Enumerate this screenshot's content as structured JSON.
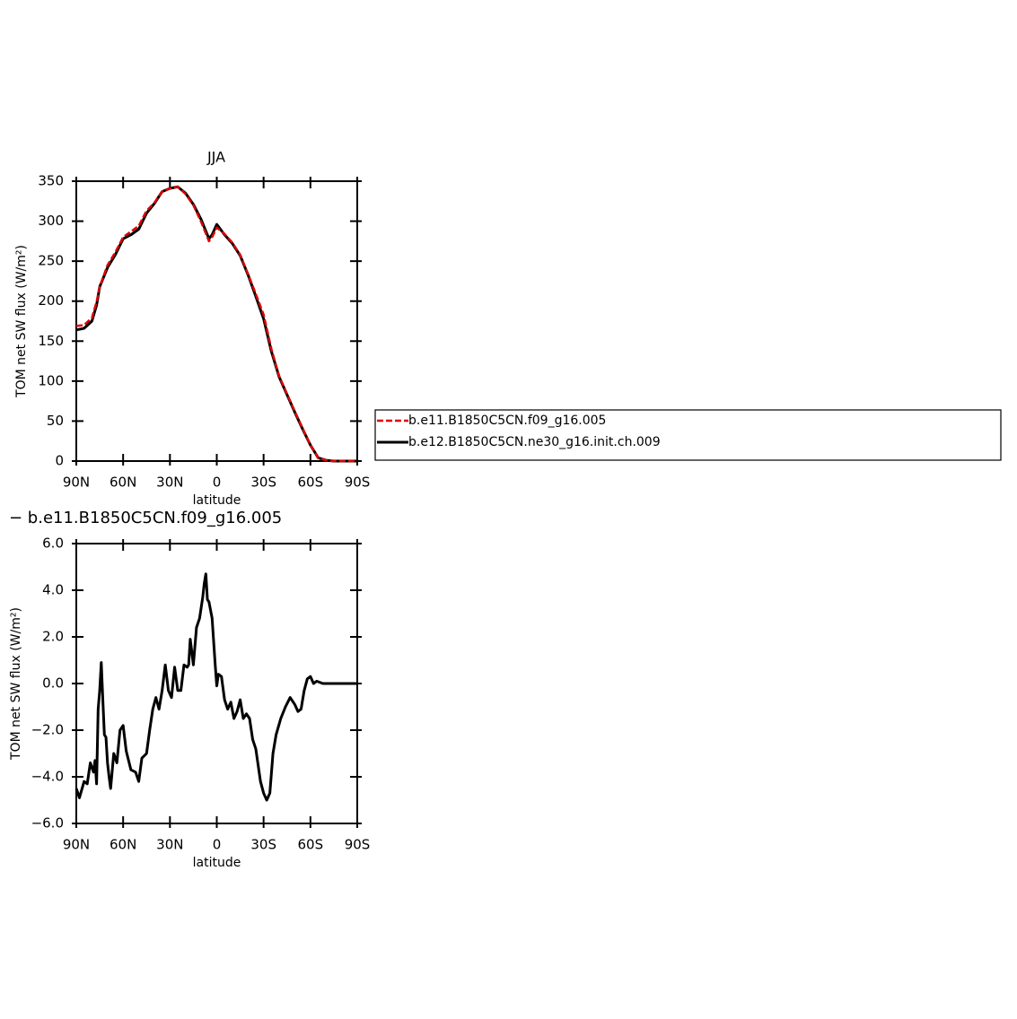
{
  "chart_data": [
    {
      "type": "line",
      "title": "JJA",
      "xlabel": "latitude",
      "ylabel": "TOM net SW flux (W/m²)",
      "x": [
        90,
        85,
        80,
        77,
        75,
        70,
        65,
        60,
        55,
        50,
        45,
        40,
        35,
        30,
        25,
        20,
        15,
        10,
        5,
        3,
        0,
        -5,
        -10,
        -15,
        -20,
        -25,
        -30,
        -35,
        -40,
        -45,
        -50,
        -55,
        -60,
        -65,
        -70,
        -75,
        -80,
        -85,
        -90
      ],
      "series": [
        {
          "name": "b.e11.B1850C5CN.f09_g16.005",
          "color": "#e00000",
          "style": "dashed",
          "values": [
            169,
            170,
            179,
            199,
            218,
            245,
            261,
            280,
            287,
            294,
            313,
            323,
            337,
            341,
            343,
            334,
            320,
            299,
            275,
            280,
            292,
            284,
            273,
            258,
            234,
            209,
            183,
            140,
            106,
            84,
            62,
            41,
            20,
            4,
            1,
            0,
            0,
            0,
            0
          ]
        },
        {
          "name": "b.e12.B1850C5CN.ne30_g16.init.ch.009",
          "color": "#000000",
          "style": "solid",
          "values": [
            164,
            166,
            175,
            195,
            218,
            242,
            258,
            278,
            283,
            290,
            310,
            322,
            337,
            341,
            343,
            335,
            321,
            302,
            278,
            283,
            296,
            283,
            272,
            257,
            233,
            206,
            178,
            137,
            105,
            83,
            61,
            40,
            20,
            4,
            1,
            0,
            0,
            0,
            0
          ]
        }
      ],
      "xlim": [
        90,
        -90
      ],
      "xticks": [
        {
          "value": 90,
          "label": "90N"
        },
        {
          "value": 60,
          "label": "60N"
        },
        {
          "value": 30,
          "label": "30N"
        },
        0,
        {
          "value": -30,
          "label": "30S"
        },
        {
          "value": -60,
          "label": "60S"
        },
        {
          "value": -90,
          "label": "90S"
        }
      ],
      "ylim": [
        0,
        350
      ],
      "yticks": [
        0,
        50,
        100,
        150,
        200,
        250,
        300,
        350
      ],
      "legend": "right"
    },
    {
      "type": "line",
      "title": "− b.e11.B1850C5CN.f09_g16.005",
      "xlabel": "latitude",
      "ylabel": "TOM net SW flux (W/m²)",
      "x": [
        90,
        88,
        85,
        83,
        81,
        79,
        78,
        77,
        76,
        75,
        74,
        73,
        72,
        71,
        70,
        69,
        68,
        66,
        64,
        62,
        60,
        58,
        55,
        52,
        50,
        48,
        45,
        43,
        41,
        39,
        37,
        35,
        33,
        31,
        29,
        27,
        25,
        23,
        21,
        19,
        18,
        17,
        15,
        13,
        11,
        9,
        8,
        7,
        6,
        5,
        3,
        1,
        0,
        -1,
        -3,
        -5,
        -7,
        -9,
        -11,
        -13,
        -15,
        -17,
        -19,
        -21,
        -23,
        -25,
        -28,
        -30,
        -32,
        -34,
        -36,
        -38,
        -41,
        -44,
        -47,
        -50,
        -52,
        -54,
        -56,
        -58,
        -60,
        -62,
        -64,
        -68,
        -72,
        -80,
        -90
      ],
      "color": "#000000",
      "values": [
        -4.5,
        -4.9,
        -4.2,
        -4.3,
        -3.4,
        -3.8,
        -3.3,
        -4.3,
        -1.1,
        -0.3,
        0.9,
        -0.7,
        -2.2,
        -2.3,
        -3.4,
        -4.0,
        -4.5,
        -3.0,
        -3.4,
        -2.0,
        -1.8,
        -2.9,
        -3.7,
        -3.8,
        -4.2,
        -3.2,
        -3.0,
        -2.0,
        -1.1,
        -0.6,
        -1.1,
        -0.3,
        0.8,
        -0.3,
        -0.6,
        0.7,
        -0.3,
        -0.3,
        0.8,
        0.7,
        0.8,
        1.9,
        0.8,
        2.4,
        2.8,
        3.7,
        4.3,
        4.7,
        3.6,
        3.5,
        2.8,
        0.8,
        -0.1,
        0.4,
        0.3,
        -0.7,
        -1.1,
        -0.8,
        -1.5,
        -1.2,
        -0.7,
        -1.5,
        -1.3,
        -1.5,
        -2.4,
        -2.8,
        -4.2,
        -4.7,
        -5.0,
        -4.7,
        -3.0,
        -2.2,
        -1.5,
        -1.0,
        -0.6,
        -0.9,
        -1.2,
        -1.1,
        -0.3,
        0.2,
        0.3,
        0.0,
        0.1,
        0.0,
        0.0,
        0,
        0
      ],
      "xlim": [
        90,
        -90
      ],
      "xticks": [
        {
          "value": 90,
          "label": "90N"
        },
        {
          "value": 60,
          "label": "60N"
        },
        {
          "value": 30,
          "label": "30N"
        },
        0,
        {
          "value": -30,
          "label": "30S"
        },
        {
          "value": -60,
          "label": "60S"
        },
        {
          "value": -90,
          "label": "90S"
        }
      ],
      "ylim": [
        -6,
        6
      ],
      "yticks": [
        {
          "value": -6,
          "label": "−6.0"
        },
        {
          "value": -4,
          "label": "−4.0"
        },
        {
          "value": -2,
          "label": "−2.0"
        },
        {
          "value": 0,
          "label": "0.0"
        },
        {
          "value": 2,
          "label": "2.0"
        },
        {
          "value": 4,
          "label": "4.0"
        },
        {
          "value": 6,
          "label": "6.0"
        }
      ]
    }
  ]
}
